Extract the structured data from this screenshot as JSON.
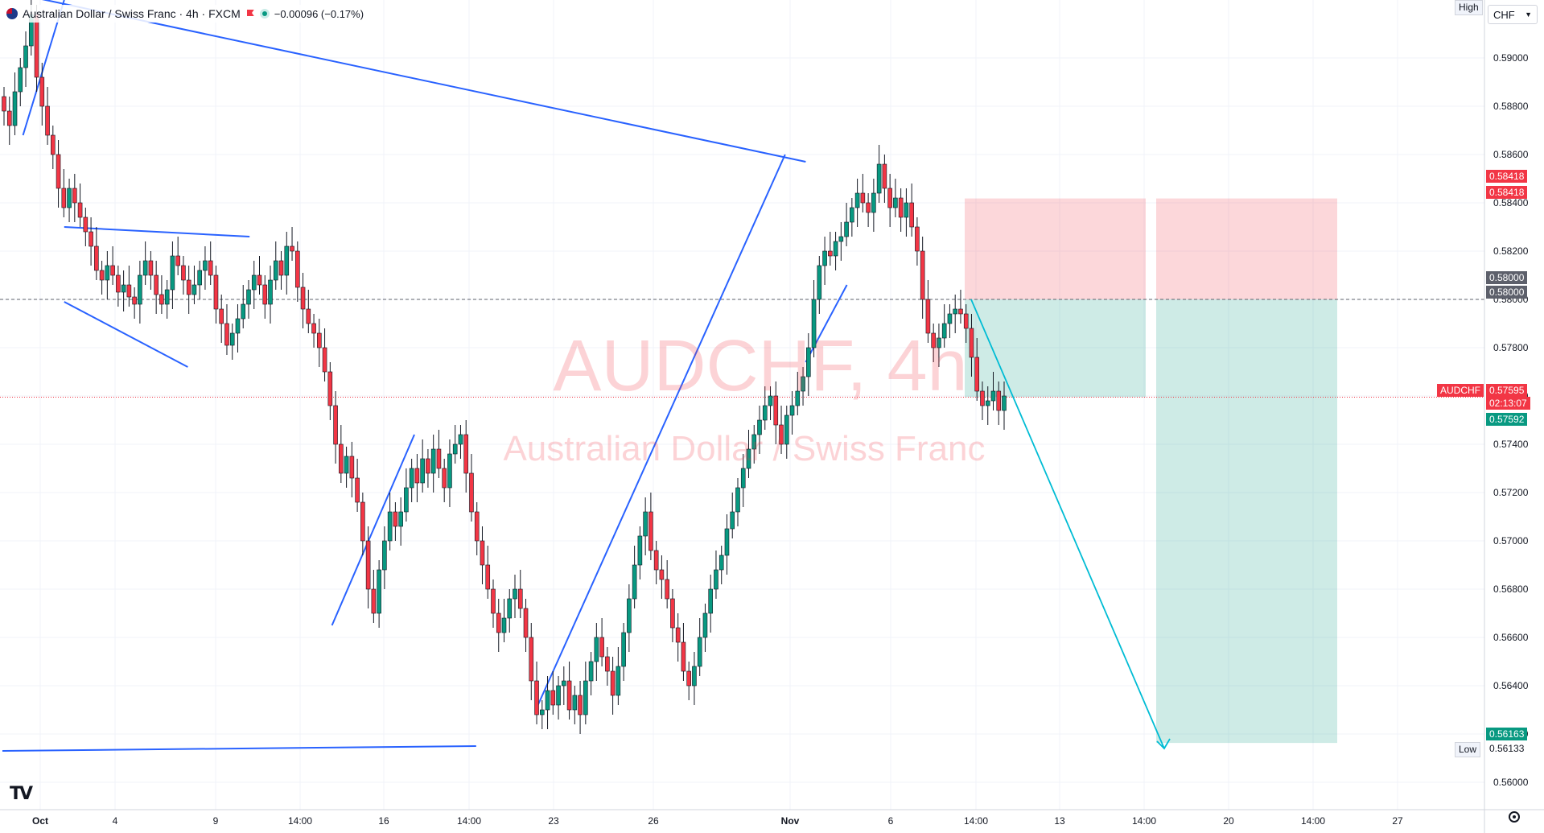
{
  "header": {
    "title": "Australian Dollar / Swiss Franc · 4h · FXCM",
    "change": "−0.00096 (−0.17%)"
  },
  "watermark": {
    "symbol": "AUDCHF, 4h",
    "name": "Australian Dollar / Swiss Franc"
  },
  "scale": {
    "currency": "CHF",
    "high_label": "High",
    "low_label": "Low",
    "low_value": "0.56133"
  },
  "tags": {
    "stop1": "0.58418",
    "stop2": "0.58418",
    "entry1": "0.58000",
    "entry2": "0.58000",
    "symbol": "AUDCHF",
    "last": "0.57595",
    "countdown": "02:13:07",
    "bid": "0.57592",
    "target": "0.56163"
  },
  "colors": {
    "up": "#089981",
    "down": "#f23645",
    "trendline": "#2962ff",
    "projection": "#00bcd4"
  },
  "chart_data": {
    "type": "candlestick",
    "title": "Australian Dollar / Swiss Franc · 4h · FXCM",
    "ylim": [
      0.5592,
      0.5922
    ],
    "yticks": [
      0.56,
      0.562,
      0.564,
      0.566,
      0.568,
      0.57,
      0.572,
      0.574,
      0.576,
      0.578,
      0.58,
      0.582,
      0.584,
      0.586,
      0.588,
      0.59
    ],
    "ytick_labels": [
      "0.56000",
      "0.56200",
      "0.56400",
      "0.56600",
      "0.56800",
      "0.57000",
      "0.57200",
      "0.57400",
      "0.57600",
      "0.57800",
      "0.58000",
      "0.58200",
      "0.58400",
      "0.58600",
      "0.58800",
      "0.59000"
    ],
    "xticks": [
      "Oct",
      "4",
      "9",
      "14:00",
      "16",
      "14:00",
      "23",
      "26",
      "Nov",
      "6",
      "14:00",
      "13",
      "14:00",
      "20",
      "14:00",
      "27"
    ],
    "candles_close": [
      0.5878,
      0.5872,
      0.5886,
      0.5896,
      0.5905,
      0.5918,
      0.5892,
      0.588,
      0.5868,
      0.586,
      0.5846,
      0.5838,
      0.5846,
      0.584,
      0.5834,
      0.5828,
      0.5822,
      0.5812,
      0.5808,
      0.5814,
      0.581,
      0.5803,
      0.5806,
      0.5801,
      0.5798,
      0.581,
      0.5816,
      0.581,
      0.5802,
      0.5798,
      0.5804,
      0.5818,
      0.5814,
      0.5808,
      0.5802,
      0.5806,
      0.5812,
      0.5816,
      0.581,
      0.5796,
      0.579,
      0.5781,
      0.5786,
      0.5792,
      0.5798,
      0.5804,
      0.581,
      0.5806,
      0.5798,
      0.5808,
      0.5816,
      0.581,
      0.5822,
      0.582,
      0.5805,
      0.5796,
      0.579,
      0.5786,
      0.578,
      0.577,
      0.5756,
      0.574,
      0.5728,
      0.5735,
      0.5726,
      0.5716,
      0.57,
      0.568,
      0.567,
      0.5688,
      0.57,
      0.5712,
      0.5706,
      0.5712,
      0.5722,
      0.573,
      0.5724,
      0.5734,
      0.5728,
      0.5738,
      0.573,
      0.5722,
      0.5736,
      0.574,
      0.5744,
      0.5728,
      0.5712,
      0.57,
      0.569,
      0.568,
      0.567,
      0.5662,
      0.5668,
      0.5676,
      0.568,
      0.5672,
      0.566,
      0.5642,
      0.5628,
      0.563,
      0.5638,
      0.5632,
      0.564,
      0.5642,
      0.563,
      0.5636,
      0.5628,
      0.5642,
      0.565,
      0.566,
      0.5652,
      0.5646,
      0.5636,
      0.5648,
      0.5662,
      0.5676,
      0.569,
      0.5702,
      0.5712,
      0.5696,
      0.5688,
      0.5684,
      0.5676,
      0.5664,
      0.5658,
      0.5646,
      0.564,
      0.5648,
      0.566,
      0.567,
      0.568,
      0.5688,
      0.5694,
      0.5705,
      0.5712,
      0.5722,
      0.573,
      0.5738,
      0.5744,
      0.575,
      0.5756,
      0.576,
      0.5748,
      0.574,
      0.5752,
      0.5756,
      0.5762,
      0.5768,
      0.578,
      0.58,
      0.5814,
      0.582,
      0.5818,
      0.5824,
      0.5826,
      0.5832,
      0.5838,
      0.5844,
      0.584,
      0.5836,
      0.5844,
      0.5856,
      0.5846,
      0.5838,
      0.5842,
      0.5834,
      0.584,
      0.583,
      0.582,
      0.58,
      0.5786,
      0.578,
      0.5784,
      0.579,
      0.5794,
      0.5796,
      0.5794,
      0.5788,
      0.5776,
      0.5762,
      0.5756,
      0.5758,
      0.5762,
      0.5754,
      0.576
    ],
    "trendlines": [
      {
        "from": [
          "Oct 1",
          0.5868
        ],
        "to": [
          "Oct 3",
          0.5924
        ]
      },
      {
        "from": [
          "Oct 1",
          0.5926
        ],
        "to": [
          "Nov 8",
          0.5857
        ]
      },
      {
        "from": [
          "Oct 3",
          0.583
        ],
        "to": [
          "Oct 12",
          0.5826
        ]
      },
      {
        "from": [
          "Oct 3",
          0.5799
        ],
        "to": [
          "Oct 9",
          0.5772
        ]
      },
      {
        "from": [
          "Oct 16",
          0.5665
        ],
        "to": [
          "Oct 20",
          0.5744
        ]
      },
      {
        "from": [
          "Sep 30",
          0.5613
        ],
        "to": [
          "Oct 23",
          0.5615
        ]
      },
      {
        "from": [
          "Oct 26",
          0.5632
        ],
        "to": [
          "Nov 7",
          0.586
        ]
      },
      {
        "from": [
          "Nov 8",
          0.5774
        ],
        "to": [
          "Nov 10",
          0.5806
        ]
      }
    ],
    "position": {
      "type": "short",
      "entry": 0.58,
      "stop": 0.58418,
      "target": 0.56163
    },
    "last_price": 0.57595
  }
}
